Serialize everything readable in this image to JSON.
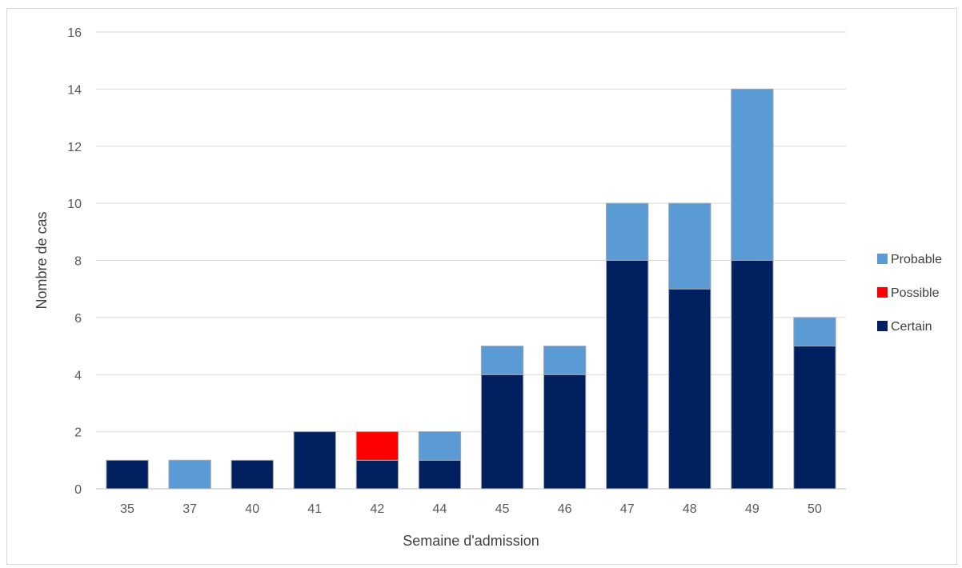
{
  "chart_data": {
    "type": "bar",
    "stacked": true,
    "categories": [
      "35",
      "37",
      "40",
      "41",
      "42",
      "44",
      "45",
      "46",
      "47",
      "48",
      "49",
      "50"
    ],
    "series": [
      {
        "name": "Certain",
        "color": "#002060",
        "values": [
          1,
          0,
          1,
          2,
          1,
          1,
          4,
          4,
          8,
          7,
          8,
          5
        ]
      },
      {
        "name": "Possible",
        "color": "#ff0000",
        "values": [
          0,
          0,
          0,
          0,
          1,
          0,
          0,
          0,
          0,
          0,
          0,
          0
        ]
      },
      {
        "name": "Probable",
        "color": "#5b9bd5",
        "values": [
          0,
          1,
          0,
          0,
          0,
          1,
          1,
          1,
          2,
          3,
          6,
          1
        ]
      }
    ],
    "xlabel": "Semaine d'admission",
    "ylabel": "Nombre de cas",
    "ylim": [
      0,
      16
    ],
    "yticks": [
      "0",
      "2",
      "4",
      "6",
      "8",
      "10",
      "12",
      "14",
      "16"
    ],
    "grid": true,
    "legend_position": "right"
  }
}
